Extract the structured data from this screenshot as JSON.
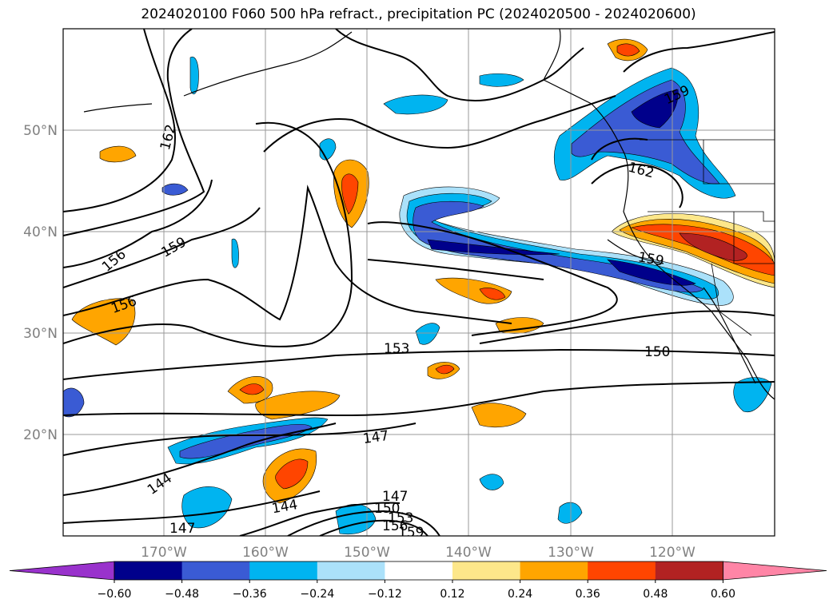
{
  "title": "2024020100 F060 500 hPa refract., precipitation PC (2024020500 - 2024020600)",
  "map": {
    "lon_labels": [
      "170°W",
      "160°W",
      "150°W",
      "140°W",
      "130°W",
      "120°W"
    ],
    "lat_labels": [
      "50°N",
      "40°N",
      "30°N",
      "20°N"
    ],
    "contour_labels": [
      "162",
      "156",
      "159",
      "156",
      "153",
      "150",
      "147",
      "144",
      "144",
      "147",
      "147",
      "150",
      "153",
      "156",
      "159",
      "159",
      "162",
      "159"
    ]
  },
  "colorbar": {
    "ticks": [
      "−0.60",
      "−0.48",
      "−0.36",
      "−0.24",
      "−0.12",
      "0.12",
      "0.24",
      "0.36",
      "0.48",
      "0.60"
    ],
    "colors": [
      "#9932cc",
      "#00008b",
      "#3a5bd4",
      "#00b4f0",
      "#abe1fa",
      "#ffffff",
      "#fde78a",
      "#ffa500",
      "#ff4500",
      "#b22222",
      "#ff85a6"
    ]
  }
}
